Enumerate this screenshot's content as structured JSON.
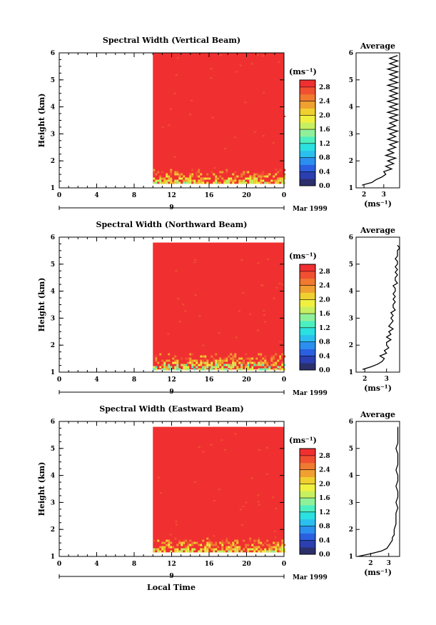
{
  "x_axis_label": "Local Time",
  "date_label": "Mar 1999",
  "day_label": "9",
  "unit_label": "(ms⁻¹)",
  "average_title": "Average",
  "height_label": "Height (km)",
  "colors": [
    "#2b2f6b",
    "#2b3fb0",
    "#2a5fe0",
    "#2b8ff0",
    "#2bbff0",
    "#2be0e0",
    "#4cf0c0",
    "#8ff09a",
    "#c7f060",
    "#f0f040",
    "#f0d030",
    "#f0a030",
    "#f07a30",
    "#f05030",
    "#f03030"
  ],
  "chart_data": [
    {
      "type": "heatmap",
      "title": "Spectral Width (Vertical Beam)",
      "ylabel": "Height (km)",
      "x_ticks": [
        "0",
        "4",
        "8",
        "12",
        "16",
        "20",
        "0"
      ],
      "y_ticks": [
        "1",
        "2",
        "3",
        "4",
        "5",
        "6"
      ],
      "xlim": [
        0,
        24
      ],
      "ylim": [
        1,
        6
      ],
      "data_x_range": [
        10,
        24
      ],
      "data_y_range": [
        1.15,
        6
      ],
      "colorbar": {
        "ticks": [
          "2.8",
          "2.4",
          "2.0",
          "1.6",
          "1.2",
          "0.8",
          "0.4",
          "0.0"
        ],
        "range": [
          0.0,
          3.0
        ]
      },
      "average_profile": {
        "xlabel": "(ms⁻¹)",
        "x_ticks": [
          "2",
          "3"
        ],
        "xlim": [
          1.6,
          3.8
        ],
        "heights": [
          1.1,
          1.2,
          1.3,
          1.4,
          1.5,
          1.6,
          1.7,
          1.8,
          1.9,
          2.0,
          2.1,
          2.2,
          2.3,
          2.4,
          2.5,
          2.6,
          2.7,
          2.8,
          2.9,
          3.0,
          3.1,
          3.2,
          3.3,
          3.4,
          3.5,
          3.6,
          3.7,
          3.8,
          3.9,
          4.0,
          4.1,
          4.2,
          4.3,
          4.4,
          4.5,
          4.6,
          4.7,
          4.8,
          4.9,
          5.0,
          5.1,
          5.2,
          5.3,
          5.4,
          5.5,
          5.6,
          5.7,
          5.8,
          5.9
        ],
        "values": [
          1.9,
          2.4,
          2.6,
          2.9,
          3.1,
          3.0,
          3.4,
          3.1,
          3.5,
          3.2,
          3.6,
          3.1,
          3.5,
          3.2,
          3.6,
          3.3,
          3.7,
          3.2,
          3.6,
          3.3,
          3.7,
          3.2,
          3.6,
          3.3,
          3.7,
          3.3,
          3.7,
          3.2,
          3.7,
          3.3,
          3.7,
          3.2,
          3.7,
          3.3,
          3.7,
          3.3,
          3.7,
          3.2,
          3.7,
          3.3,
          3.7,
          3.3,
          3.7,
          3.2,
          3.7,
          3.3,
          3.7,
          3.3,
          3.7
        ]
      }
    },
    {
      "type": "heatmap",
      "title": "Spectral Width (Northward Beam)",
      "ylabel": "Height (km)",
      "x_ticks": [
        "0",
        "4",
        "8",
        "12",
        "16",
        "20",
        "0"
      ],
      "y_ticks": [
        "1",
        "2",
        "3",
        "4",
        "5",
        "6"
      ],
      "xlim": [
        0,
        24
      ],
      "ylim": [
        1,
        6
      ],
      "data_x_range": [
        10,
        24
      ],
      "data_y_range": [
        1.1,
        5.8
      ],
      "colorbar": {
        "ticks": [
          "2.8",
          "2.4",
          "2.0",
          "1.6",
          "1.2",
          "0.8",
          "0.4",
          "0.0"
        ],
        "range": [
          0.0,
          3.0
        ]
      },
      "average_profile": {
        "xlabel": "(ms⁻¹)",
        "x_ticks": [
          "2",
          "3"
        ],
        "xlim": [
          1.6,
          3.6
        ],
        "heights": [
          1.1,
          1.2,
          1.3,
          1.4,
          1.5,
          1.6,
          1.7,
          1.8,
          1.9,
          2.0,
          2.1,
          2.2,
          2.3,
          2.4,
          2.5,
          2.6,
          2.7,
          2.8,
          2.9,
          3.0,
          3.1,
          3.2,
          3.3,
          3.4,
          3.5,
          3.6,
          3.7,
          3.8,
          3.9,
          4.0,
          4.1,
          4.2,
          4.3,
          4.4,
          4.5,
          4.6,
          4.7,
          4.8,
          4.9,
          5.0,
          5.1,
          5.2,
          5.3,
          5.4,
          5.5,
          5.6,
          5.7
        ],
        "values": [
          1.9,
          2.3,
          2.6,
          2.8,
          2.9,
          2.7,
          3.0,
          2.9,
          3.1,
          3.0,
          3.0,
          3.2,
          3.0,
          3.2,
          3.1,
          3.3,
          3.1,
          3.2,
          3.3,
          3.2,
          3.3,
          3.2,
          3.4,
          3.3,
          3.3,
          3.4,
          3.3,
          3.4,
          3.3,
          3.4,
          3.4,
          3.3,
          3.5,
          3.4,
          3.4,
          3.5,
          3.4,
          3.5,
          3.4,
          3.5,
          3.5,
          3.4,
          3.5,
          3.5,
          3.5,
          3.6,
          3.5
        ]
      }
    },
    {
      "type": "heatmap",
      "title": "Spectral Width (Eastward Beam)",
      "ylabel": "Height (km)",
      "x_ticks": [
        "0",
        "4",
        "8",
        "12",
        "16",
        "20",
        "0"
      ],
      "y_ticks": [
        "1",
        "2",
        "3",
        "4",
        "5",
        "6"
      ],
      "xlim": [
        0,
        24
      ],
      "ylim": [
        1,
        6
      ],
      "data_x_range": [
        10,
        24
      ],
      "data_y_range": [
        1.15,
        5.8
      ],
      "colorbar": {
        "ticks": [
          "2.8",
          "2.4",
          "2.0",
          "1.6",
          "1.2",
          "0.8",
          "0.4",
          "0.0"
        ],
        "range": [
          0.0,
          3.0
        ]
      },
      "average_profile": {
        "xlabel": "(ms⁻¹)",
        "x_ticks": [
          "2",
          "3"
        ],
        "xlim": [
          1.2,
          3.6
        ],
        "heights": [
          1.0,
          1.1,
          1.2,
          1.3,
          1.4,
          1.5,
          1.6,
          1.7,
          1.8,
          1.9,
          2.0,
          2.2,
          2.4,
          2.6,
          2.8,
          3.0,
          3.2,
          3.4,
          3.6,
          3.8,
          4.0,
          4.2,
          4.4,
          4.6,
          4.8,
          5.0,
          5.2,
          5.4,
          5.6,
          5.8
        ],
        "values": [
          1.3,
          2.0,
          2.6,
          2.9,
          3.0,
          3.1,
          3.2,
          3.2,
          3.3,
          3.3,
          3.3,
          3.4,
          3.4,
          3.4,
          3.5,
          3.4,
          3.5,
          3.5,
          3.4,
          3.5,
          3.5,
          3.4,
          3.5,
          3.5,
          3.5,
          3.4,
          3.5,
          3.5,
          3.5,
          3.5
        ]
      }
    }
  ]
}
